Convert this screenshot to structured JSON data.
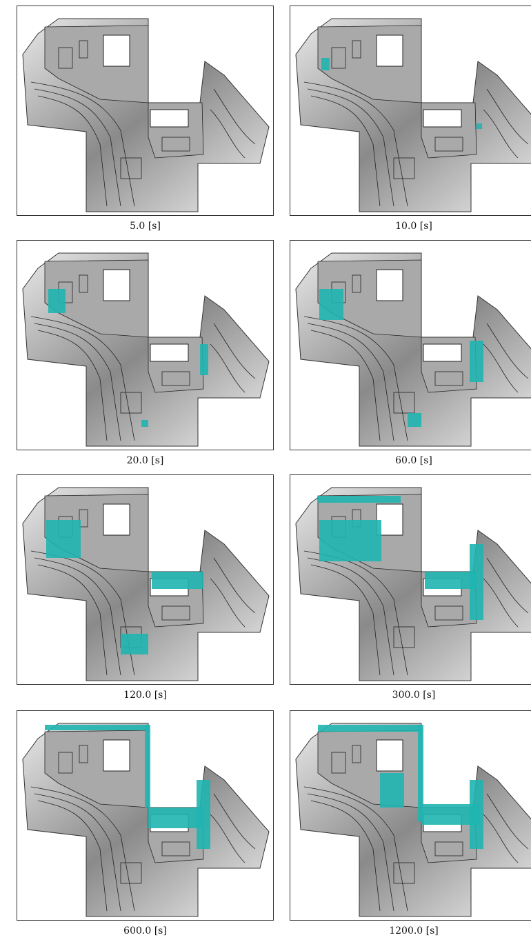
{
  "panels": [
    {
      "caption": "5.0 [s]"
    },
    {
      "caption": "10.0 [s]"
    },
    {
      "caption": "20.0 [s]"
    },
    {
      "caption": "60.0 [s]"
    },
    {
      "caption": "120.0 [s]"
    },
    {
      "caption": "300.0 [s]"
    },
    {
      "caption": "600.0 [s]"
    },
    {
      "caption": "1200.0 [s]"
    }
  ]
}
